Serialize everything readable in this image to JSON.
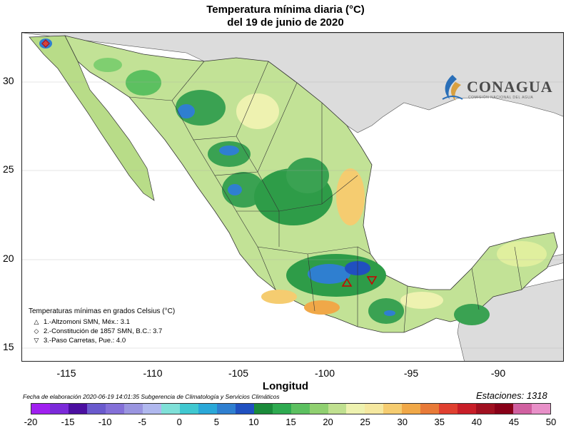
{
  "title": {
    "line1": "Temperatura mínima diaria (°C)",
    "line2": "del 19 de junio de 2020"
  },
  "axes": {
    "y_ticks": [
      "30",
      "25",
      "20",
      "15"
    ],
    "x_ticks": [
      "-115",
      "-110",
      "-105",
      "-100",
      "-95",
      "-90"
    ],
    "x_title": "Longitud"
  },
  "logo": {
    "name": "CONAGUA",
    "subtitle": "COMISIÓN NACIONAL DEL AGUA"
  },
  "legend": {
    "heading": "Temperaturas mínimas en grados Celsius (°C)",
    "items": [
      {
        "symbol": "△",
        "text": "1.-Altzomoni SMN, Méx.: 3.1"
      },
      {
        "symbol": "◇",
        "text": "2.-Constitución de 1857 SMN, B.C.: 3.7"
      },
      {
        "symbol": "▽",
        "text": "3.-Paso Carretas, Pue.: 4.0"
      }
    ]
  },
  "footer": {
    "left": "Fecha de elaboración 2020-06-19 14:01:35 Subgerencia de Climatología y Servicios Climáticos",
    "right": "Estaciones:  1318"
  },
  "colorbar": {
    "labels": [
      "-20",
      "-15",
      "-10",
      "-5",
      "0",
      "5",
      "10",
      "15",
      "20",
      "25",
      "30",
      "35",
      "40",
      "45",
      "50"
    ],
    "colors": [
      "#a020f0",
      "#7b2ad9",
      "#4b0fa0",
      "#6a5acd",
      "#8470d8",
      "#9a95e0",
      "#b0b8ee",
      "#7fe0d8",
      "#40c8d0",
      "#2aa8d8",
      "#2f7fd0",
      "#2050c0",
      "#1a8a3a",
      "#2eaa50",
      "#5cc060",
      "#90d070",
      "#c0e090",
      "#eef2b0",
      "#f5e8a0",
      "#f5cc70",
      "#f0a848",
      "#e87a38",
      "#e04030",
      "#c81e28",
      "#a01020",
      "#880018",
      "#d060a0",
      "#e890c8"
    ]
  }
}
